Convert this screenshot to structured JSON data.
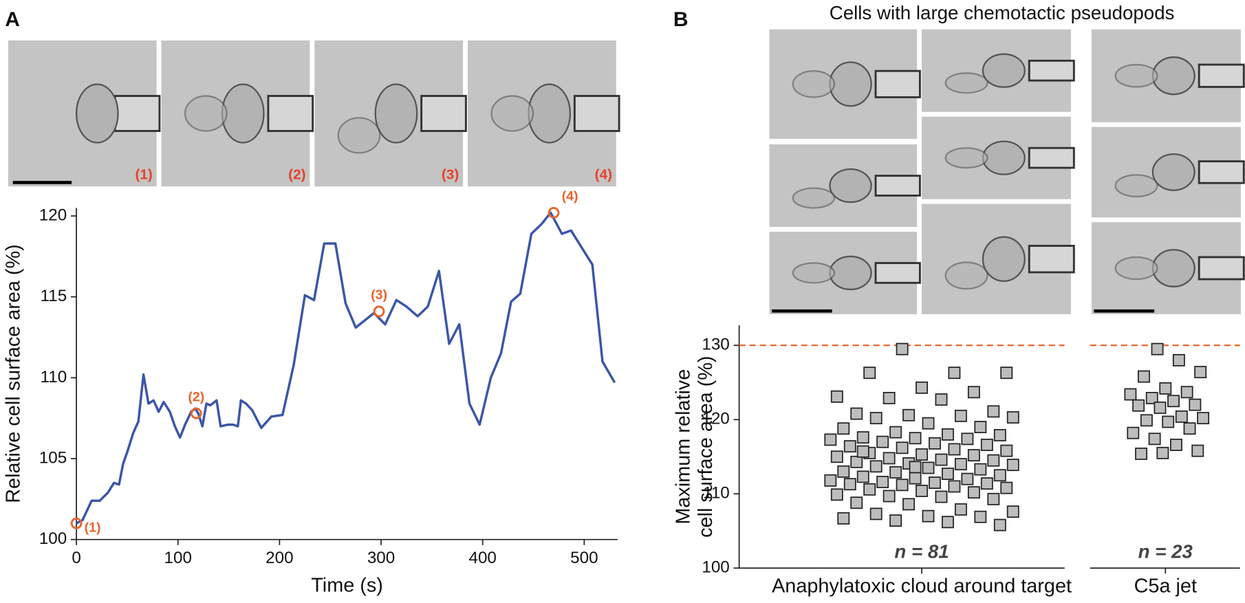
{
  "figure": {
    "panel_labels": [
      "A",
      "B"
    ],
    "image_title": "Cells with large chemotactic pseudopods",
    "image_labels": [
      "(1)",
      "(2)",
      "(3)",
      "(4)"
    ]
  },
  "chart_data": [
    {
      "type": "line",
      "color": "#3a56a8",
      "xlabel": "Time (s)",
      "ylabel": "Relative cell surface area (%)",
      "x": [
        0,
        6,
        15,
        23,
        31,
        37,
        42,
        46,
        50,
        56,
        61,
        66,
        71,
        76,
        81,
        86,
        92,
        97,
        102,
        107,
        113,
        117,
        120,
        124,
        128,
        132,
        138,
        142,
        149,
        154,
        159,
        162,
        167,
        173,
        182,
        192,
        203,
        214,
        225,
        234,
        244,
        255,
        265,
        275,
        293,
        304,
        315,
        325,
        336,
        346,
        357,
        367,
        377,
        387,
        397,
        408,
        418,
        428,
        437,
        448,
        458,
        467,
        478,
        487,
        508,
        518,
        530
      ],
      "values": [
        101.0,
        101.2,
        102.4,
        102.4,
        102.9,
        103.5,
        103.4,
        104.7,
        105.4,
        106.6,
        107.3,
        110.2,
        108.4,
        108.6,
        107.9,
        108.5,
        107.9,
        107.0,
        106.3,
        107.1,
        107.9,
        108.1,
        107.8,
        107.0,
        108.4,
        108.3,
        108.6,
        107.0,
        107.1,
        107.1,
        107.0,
        108.6,
        108.4,
        108.0,
        106.9,
        107.6,
        107.7,
        110.8,
        115.1,
        114.8,
        118.3,
        118.3,
        114.6,
        113.1,
        114.0,
        113.3,
        114.8,
        114.4,
        113.8,
        114.4,
        116.6,
        112.1,
        113.3,
        108.4,
        107.1,
        110.0,
        111.5,
        114.7,
        115.2,
        118.9,
        119.5,
        120.2,
        118.9,
        119.1,
        117.0,
        111.0,
        109.7
      ],
      "annotations": [
        {
          "x": 0,
          "y": 101.0,
          "label": "(1)"
        },
        {
          "x": 118,
          "y": 107.8,
          "label": "(2)"
        },
        {
          "x": 298,
          "y": 114.1,
          "label": "(3)"
        },
        {
          "x": 470,
          "y": 120.2,
          "label": "(4)"
        }
      ],
      "annotation_color": "#e8642a",
      "xlim": [
        0,
        533
      ],
      "ylim": [
        100,
        120.5
      ],
      "xticks": [
        0,
        100,
        200,
        300,
        400,
        500
      ],
      "yticks": [
        100,
        105,
        110,
        115,
        120
      ]
    },
    {
      "type": "strip",
      "ylabel": [
        "Maximum relative",
        "cell surface area (%)"
      ],
      "marker_color": "#bdbdbd",
      "reference_line": 130,
      "reference_color": "#e8642a",
      "groups": [
        {
          "category": "Anaphylatoxic cloud around target",
          "n_label": "n = 81",
          "values": [
            129.5,
            126.3,
            126.3,
            126.3,
            124.3,
            123.7,
            123.1,
            122.9,
            122.7,
            121.1,
            120.8,
            120.6,
            120.5,
            120.3,
            120.2,
            119.5,
            119.0,
            118.8,
            118.3,
            118.0,
            117.9,
            117.6,
            117.5,
            117.4,
            117.3,
            117.0,
            116.8,
            116.6,
            116.4,
            116.2,
            116.0,
            115.8,
            115.5,
            115.3,
            115.2,
            115.0,
            114.8,
            114.6,
            114.5,
            114.3,
            114.1,
            114.0,
            113.9,
            113.7,
            113.5,
            113.3,
            113.0,
            112.9,
            112.7,
            112.5,
            112.3,
            112.1,
            112.0,
            111.8,
            111.6,
            111.5,
            111.4,
            111.3,
            111.2,
            111.0,
            110.8,
            110.6,
            110.4,
            110.2,
            109.9,
            109.7,
            109.6,
            109.3,
            108.8,
            108.6,
            107.9,
            107.6,
            107.3,
            107.0,
            106.9,
            106.7,
            106.4,
            106.2,
            105.8,
            115.7,
            113.6
          ]
        },
        {
          "category": "C5a jet",
          "n_label": "n = 23",
          "values": [
            129.5,
            128.0,
            126.4,
            125.8,
            124.2,
            123.7,
            123.4,
            122.9,
            122.5,
            122.0,
            121.9,
            121.6,
            120.4,
            120.2,
            119.9,
            119.7,
            118.8,
            118.2,
            117.4,
            116.6,
            115.8,
            115.4,
            115.5
          ]
        }
      ],
      "ylim": [
        100,
        132.7
      ],
      "yticks": [
        100,
        110,
        120,
        130
      ]
    }
  ]
}
